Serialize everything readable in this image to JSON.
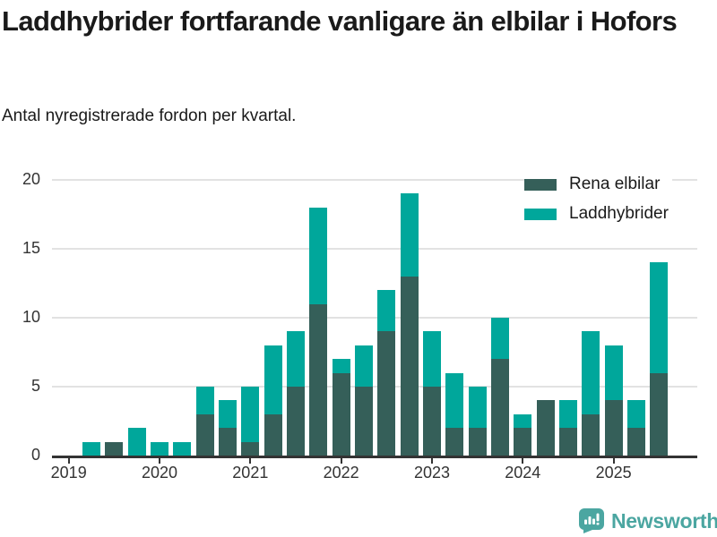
{
  "title": "Laddhybrider fortfarande vanligare än elbilar i Hofors",
  "subtitle": "Antal nyregistrerade fordon per kvartal.",
  "chart_data": {
    "type": "bar",
    "stacked": true,
    "title": "Laddhybrider fortfarande vanligare än elbilar i Hofors",
    "subtitle": "Antal nyregistrerade fordon per kvartal.",
    "categories": [
      "2019 Q1",
      "2019 Q2",
      "2019 Q3",
      "2019 Q4",
      "2020 Q1",
      "2020 Q2",
      "2020 Q3",
      "2020 Q4",
      "2021 Q1",
      "2021 Q2",
      "2021 Q3",
      "2021 Q4",
      "2022 Q1",
      "2022 Q2",
      "2022 Q3",
      "2022 Q4",
      "2023 Q1",
      "2023 Q2",
      "2023 Q3",
      "2023 Q4",
      "2024 Q1",
      "2024 Q2",
      "2024 Q3",
      "2024 Q4",
      "2025 Q1",
      "2025 Q2",
      "2025 Q3"
    ],
    "series": [
      {
        "name": "Rena elbilar",
        "color": "#355f59",
        "values": [
          0,
          0,
          1,
          0,
          0,
          0,
          3,
          2,
          1,
          3,
          5,
          11,
          6,
          5,
          9,
          13,
          5,
          2,
          2,
          7,
          2,
          4,
          2,
          3,
          4,
          2,
          6
        ]
      },
      {
        "name": "Laddhybrider",
        "color": "#00a79b",
        "values": [
          0,
          1,
          0,
          2,
          1,
          1,
          2,
          2,
          4,
          5,
          4,
          7,
          1,
          3,
          3,
          6,
          4,
          4,
          3,
          3,
          1,
          0,
          2,
          6,
          4,
          2,
          8
        ]
      }
    ],
    "xlabel": "",
    "ylabel": "",
    "x_tick_labels": [
      "2019",
      "2020",
      "2021",
      "2022",
      "2023",
      "2024",
      "2025"
    ],
    "yticks": [
      0,
      5,
      10,
      15,
      20
    ],
    "ylim": [
      0,
      20
    ],
    "grid": true,
    "legend_position": "top-right"
  },
  "footer": {
    "brand": "Newsworthy"
  },
  "colors": {
    "electric_dark_teal": "#355f59",
    "hybrid_teal": "#00a79b",
    "gridline": "#e2e2e2",
    "axis": "#333333",
    "text": "#1a1a1a",
    "brand_teal": "#4ba6a1"
  }
}
